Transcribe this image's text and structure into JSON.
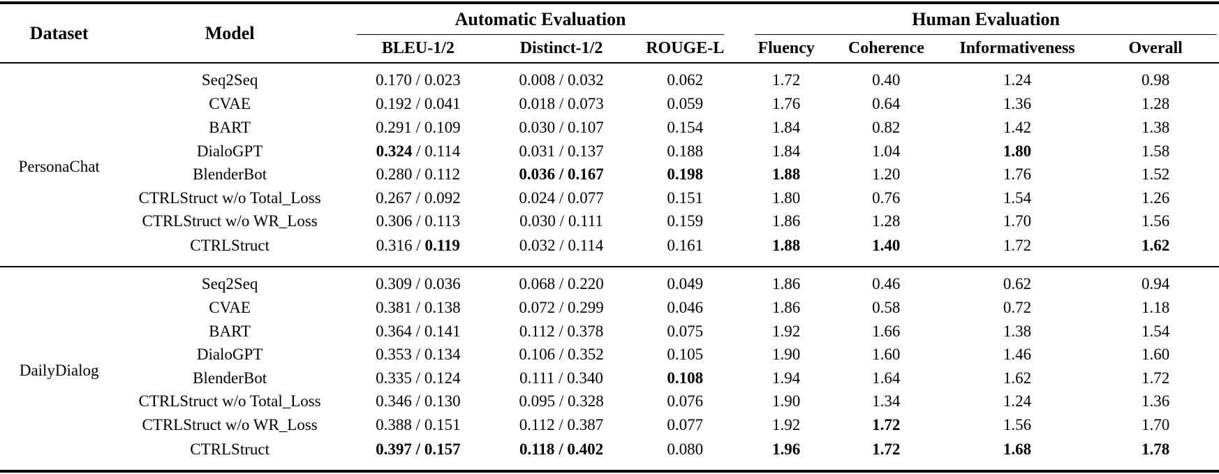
{
  "page": {
    "background": "#ffffff",
    "text_color": "#000000",
    "rule_color": "#000000"
  },
  "table": {
    "header": {
      "dataset": "Dataset",
      "model": "Model",
      "groups": [
        {
          "label": "Automatic Evaluation"
        },
        {
          "label": "Human Evaluation"
        }
      ],
      "auto_columns": [
        "BLEU-1/2",
        "Distinct-1/2",
        "ROUGE-L"
      ],
      "human_columns": [
        "Fluency",
        "Coherence",
        "Informativeness",
        "Overall"
      ]
    },
    "value_separator": " / ",
    "sections": [
      {
        "dataset": "PersonaChat",
        "rows": [
          {
            "model": "Seq2Seq",
            "values": [
              [
                "0.170",
                0
              ],
              [
                "0.023",
                0
              ],
              [
                "0.008",
                0
              ],
              [
                "0.032",
                0
              ],
              [
                "0.062",
                0
              ],
              [
                "1.72",
                0
              ],
              [
                "0.40",
                0
              ],
              [
                "1.24",
                0
              ],
              [
                "0.98",
                0
              ]
            ]
          },
          {
            "model": "CVAE",
            "values": [
              [
                "0.192",
                0
              ],
              [
                "0.041",
                0
              ],
              [
                "0.018",
                0
              ],
              [
                "0.073",
                0
              ],
              [
                "0.059",
                0
              ],
              [
                "1.76",
                0
              ],
              [
                "0.64",
                0
              ],
              [
                "1.36",
                0
              ],
              [
                "1.28",
                0
              ]
            ]
          },
          {
            "model": "BART",
            "values": [
              [
                "0.291",
                0
              ],
              [
                "0.109",
                0
              ],
              [
                "0.030",
                0
              ],
              [
                "0.107",
                0
              ],
              [
                "0.154",
                0
              ],
              [
                "1.84",
                0
              ],
              [
                "0.82",
                0
              ],
              [
                "1.42",
                0
              ],
              [
                "1.38",
                0
              ]
            ]
          },
          {
            "model": "DialoGPT",
            "values": [
              [
                "0.324",
                1
              ],
              [
                "0.114",
                0
              ],
              [
                "0.031",
                0
              ],
              [
                "0.137",
                0
              ],
              [
                "0.188",
                0
              ],
              [
                "1.84",
                0
              ],
              [
                "1.04",
                0
              ],
              [
                "1.80",
                1
              ],
              [
                "1.58",
                0
              ]
            ]
          },
          {
            "model": "BlenderBot",
            "values": [
              [
                "0.280",
                0
              ],
              [
                "0.112",
                0
              ],
              [
                "0.036",
                1
              ],
              [
                "0.167",
                1
              ],
              [
                "0.198",
                1
              ],
              [
                "1.88",
                1
              ],
              [
                "1.20",
                0
              ],
              [
                "1.76",
                0
              ],
              [
                "1.52",
                0
              ]
            ]
          },
          {
            "model": "CTRLStruct w/o Total_Loss",
            "values": [
              [
                "0.267",
                0
              ],
              [
                "0.092",
                0
              ],
              [
                "0.024",
                0
              ],
              [
                "0.077",
                0
              ],
              [
                "0.151",
                0
              ],
              [
                "1.80",
                0
              ],
              [
                "0.76",
                0
              ],
              [
                "1.54",
                0
              ],
              [
                "1.26",
                0
              ]
            ]
          },
          {
            "model": "CTRLStruct w/o WR_Loss",
            "values": [
              [
                "0.306",
                0
              ],
              [
                "0.113",
                0
              ],
              [
                "0.030",
                0
              ],
              [
                "0.111",
                0
              ],
              [
                "0.159",
                0
              ],
              [
                "1.86",
                0
              ],
              [
                "1.28",
                0
              ],
              [
                "1.70",
                0
              ],
              [
                "1.56",
                0
              ]
            ]
          },
          {
            "model": "CTRLStruct",
            "values": [
              [
                "0.316",
                0
              ],
              [
                "0.119",
                1
              ],
              [
                "0.032",
                0
              ],
              [
                "0.114",
                0
              ],
              [
                "0.161",
                0
              ],
              [
                "1.88",
                1
              ],
              [
                "1.40",
                1
              ],
              [
                "1.72",
                0
              ],
              [
                "1.62",
                1
              ]
            ]
          }
        ]
      },
      {
        "dataset": "DailyDialog",
        "rows": [
          {
            "model": "Seq2Seq",
            "values": [
              [
                "0.309",
                0
              ],
              [
                "0.036",
                0
              ],
              [
                "0.068",
                0
              ],
              [
                "0.220",
                0
              ],
              [
                "0.049",
                0
              ],
              [
                "1.86",
                0
              ],
              [
                "0.46",
                0
              ],
              [
                "0.62",
                0
              ],
              [
                "0.94",
                0
              ]
            ]
          },
          {
            "model": "CVAE",
            "values": [
              [
                "0.381",
                0
              ],
              [
                "0.138",
                0
              ],
              [
                "0.072",
                0
              ],
              [
                "0.299",
                0
              ],
              [
                "0.046",
                0
              ],
              [
                "1.86",
                0
              ],
              [
                "0.58",
                0
              ],
              [
                "0.72",
                0
              ],
              [
                "1.18",
                0
              ]
            ]
          },
          {
            "model": "BART",
            "values": [
              [
                "0.364",
                0
              ],
              [
                "0.141",
                0
              ],
              [
                "0.112",
                0
              ],
              [
                "0.378",
                0
              ],
              [
                "0.075",
                0
              ],
              [
                "1.92",
                0
              ],
              [
                "1.66",
                0
              ],
              [
                "1.38",
                0
              ],
              [
                "1.54",
                0
              ]
            ]
          },
          {
            "model": "DialoGPT",
            "values": [
              [
                "0.353",
                0
              ],
              [
                "0.134",
                0
              ],
              [
                "0.106",
                0
              ],
              [
                "0.352",
                0
              ],
              [
                "0.105",
                0
              ],
              [
                "1.90",
                0
              ],
              [
                "1.60",
                0
              ],
              [
                "1.46",
                0
              ],
              [
                "1.60",
                0
              ]
            ]
          },
          {
            "model": "BlenderBot",
            "values": [
              [
                "0.335",
                0
              ],
              [
                "0.124",
                0
              ],
              [
                "0.111",
                0
              ],
              [
                "0.340",
                0
              ],
              [
                "0.108",
                1
              ],
              [
                "1.94",
                0
              ],
              [
                "1.64",
                0
              ],
              [
                "1.62",
                0
              ],
              [
                "1.72",
                0
              ]
            ]
          },
          {
            "model": "CTRLStruct w/o Total_Loss",
            "values": [
              [
                "0.346",
                0
              ],
              [
                "0.130",
                0
              ],
              [
                "0.095",
                0
              ],
              [
                "0.328",
                0
              ],
              [
                "0.076",
                0
              ],
              [
                "1.90",
                0
              ],
              [
                "1.34",
                0
              ],
              [
                "1.24",
                0
              ],
              [
                "1.36",
                0
              ]
            ]
          },
          {
            "model": "CTRLStruct w/o WR_Loss",
            "values": [
              [
                "0.388",
                0
              ],
              [
                "0.151",
                0
              ],
              [
                "0.112",
                0
              ],
              [
                "0.387",
                0
              ],
              [
                "0.077",
                0
              ],
              [
                "1.92",
                0
              ],
              [
                "1.72",
                1
              ],
              [
                "1.56",
                0
              ],
              [
                "1.70",
                0
              ]
            ]
          },
          {
            "model": "CTRLStruct",
            "values": [
              [
                "0.397",
                1
              ],
              [
                "0.157",
                1
              ],
              [
                "0.118",
                1
              ],
              [
                "0.402",
                1
              ],
              [
                "0.080",
                0
              ],
              [
                "1.96",
                1
              ],
              [
                "1.72",
                1
              ],
              [
                "1.68",
                1
              ],
              [
                "1.78",
                1
              ]
            ]
          }
        ]
      }
    ]
  }
}
